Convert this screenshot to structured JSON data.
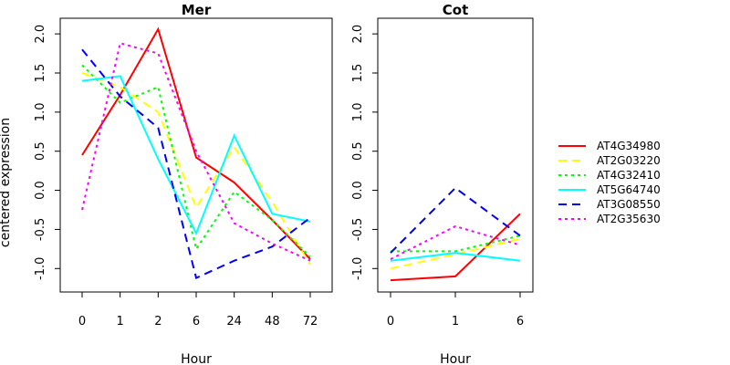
{
  "chart_data": {
    "type": "line",
    "ylabel": "centered expression",
    "legend_position": "right",
    "grid": false,
    "series_styles": [
      {
        "name": "AT4G34980",
        "color": "#ff0000",
        "dash": "solid"
      },
      {
        "name": "AT2G03220",
        "color": "#ffff00",
        "dash": "dashed"
      },
      {
        "name": "AT4G32410",
        "color": "#00ff00",
        "dash": "dotted"
      },
      {
        "name": "AT5G64740",
        "color": "#00ffff",
        "dash": "solid"
      },
      {
        "name": "AT3G08550",
        "color": "#0000ff",
        "dash": "dashed"
      },
      {
        "name": "AT2G35630",
        "color": "#ff00ff",
        "dash": "dotted"
      }
    ],
    "panels": [
      {
        "title": "Mer",
        "xlabel": "Hour",
        "categories": [
          "0",
          "1",
          "2",
          "6",
          "24",
          "48",
          "72"
        ],
        "ylim": [
          -1.3,
          2.2
        ],
        "yticks": [
          -1.0,
          -0.5,
          0.0,
          0.5,
          1.0,
          1.5,
          2.0
        ],
        "series": [
          {
            "name": "AT4G34980",
            "values": [
              0.45,
              1.22,
              2.06,
              0.42,
              0.1,
              -0.38,
              -0.88
            ]
          },
          {
            "name": "AT2G03220",
            "values": [
              1.5,
              1.32,
              1.0,
              -0.22,
              0.55,
              -0.15,
              -0.95
            ]
          },
          {
            "name": "AT4G32410",
            "values": [
              1.6,
              1.12,
              1.32,
              -0.75,
              -0.02,
              -0.38,
              -0.85
            ]
          },
          {
            "name": "AT5G64740",
            "values": [
              1.4,
              1.46,
              0.4,
              -0.55,
              0.7,
              -0.3,
              -0.4
            ]
          },
          {
            "name": "AT3G08550",
            "values": [
              1.8,
              1.2,
              0.8,
              -1.12,
              -0.9,
              -0.72,
              -0.35
            ]
          },
          {
            "name": "AT2G35630",
            "values": [
              -0.25,
              1.88,
              1.75,
              0.5,
              -0.42,
              -0.68,
              -0.9
            ]
          }
        ]
      },
      {
        "title": "Cot",
        "xlabel": "Hour",
        "categories": [
          "0",
          "1",
          "6"
        ],
        "ylim": [
          -1.3,
          2.2
        ],
        "yticks": [
          -1.0,
          -0.5,
          0.0,
          0.5,
          1.0,
          1.5,
          2.0
        ],
        "series": [
          {
            "name": "AT4G34980",
            "values": [
              -1.15,
              -1.1,
              -0.3
            ]
          },
          {
            "name": "AT2G03220",
            "values": [
              -1.0,
              -0.82,
              -0.62
            ]
          },
          {
            "name": "AT4G32410",
            "values": [
              -0.78,
              -0.78,
              -0.58
            ]
          },
          {
            "name": "AT5G64740",
            "values": [
              -0.9,
              -0.8,
              -0.9
            ]
          },
          {
            "name": "AT3G08550",
            "values": [
              -0.8,
              0.03,
              -0.58
            ]
          },
          {
            "name": "AT2G35630",
            "values": [
              -0.88,
              -0.46,
              -0.7
            ]
          }
        ]
      }
    ]
  }
}
